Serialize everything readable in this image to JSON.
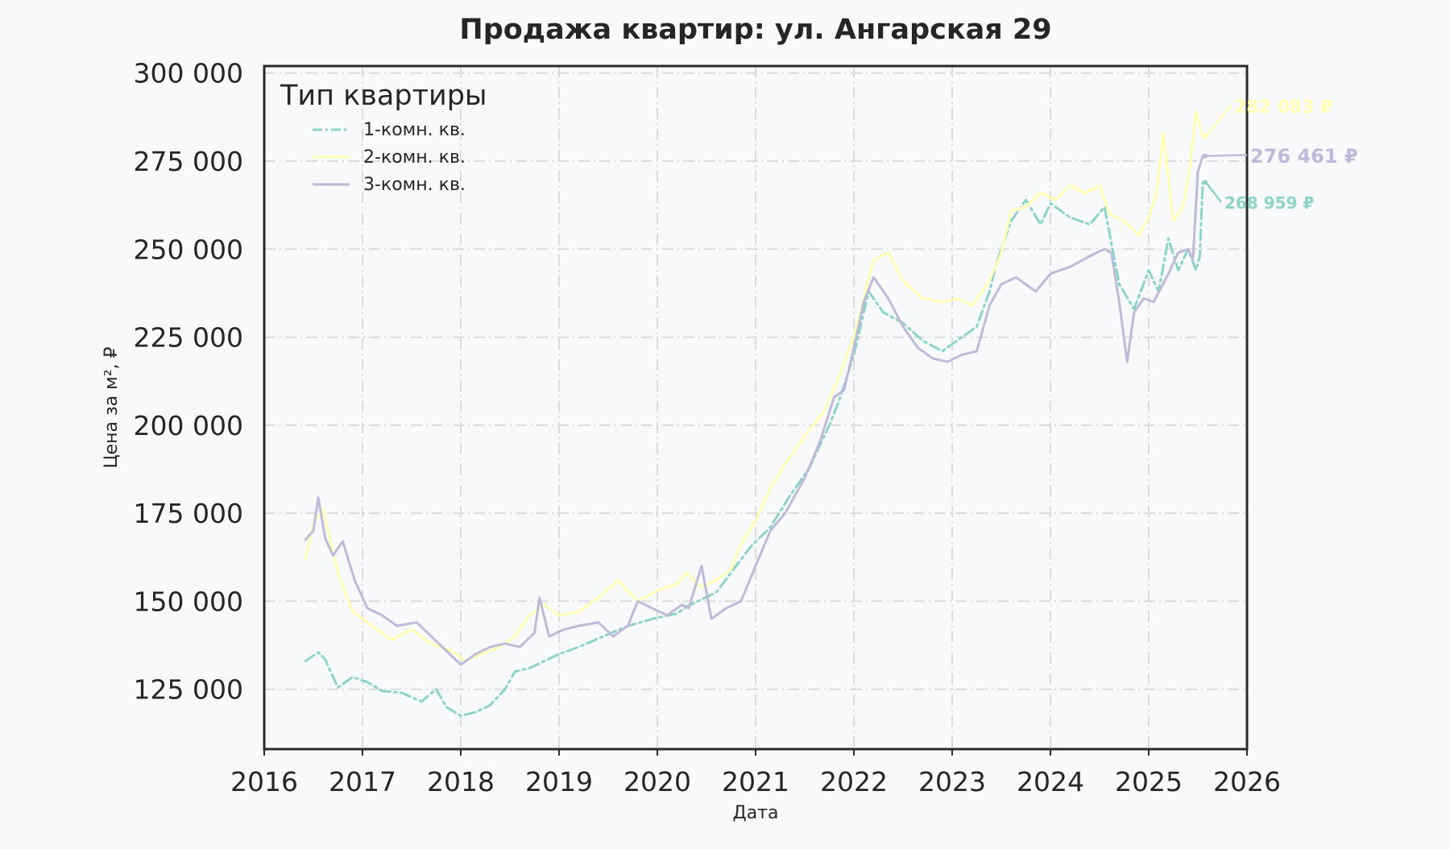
{
  "chart_data": {
    "type": "line",
    "title": "Продажа квартир: ул. Ангарская 29",
    "xlabel": "Дата",
    "ylabel": "Цена за м², ₽",
    "xlim": [
      2016,
      2026
    ],
    "ylim": [
      108000,
      302000
    ],
    "x_ticks": [
      "2016",
      "2017",
      "2018",
      "2019",
      "2020",
      "2021",
      "2022",
      "2023",
      "2024",
      "2025",
      "2026"
    ],
    "y_ticks": [
      "125 000",
      "150 000",
      "175 000",
      "200 000",
      "225 000",
      "250 000",
      "275 000",
      "300 000"
    ],
    "grid": true,
    "legend": {
      "title": "Тип квартиры",
      "placement": "top-left"
    },
    "series": [
      {
        "name": "1-комн. кв.",
        "color": "#8dd3c7",
        "dash": "dashdot",
        "end_label": "268 959 ₽",
        "x": [
          2016.42,
          2016.55,
          2016.62,
          2016.75,
          2016.9,
          2017.05,
          2017.2,
          2017.4,
          2017.6,
          2017.75,
          2017.85,
          2018.0,
          2018.15,
          2018.3,
          2018.45,
          2018.55,
          2018.7,
          2018.85,
          2019.0,
          2019.2,
          2019.45,
          2019.7,
          2019.95,
          2020.2,
          2020.3,
          2020.45,
          2020.6,
          2020.8,
          2020.95,
          2021.15,
          2021.35,
          2021.55,
          2021.75,
          2021.85,
          2022.0,
          2022.15,
          2022.3,
          2022.5,
          2022.7,
          2022.9,
          2023.05,
          2023.25,
          2023.38,
          2023.45,
          2023.6,
          2023.75,
          2023.9,
          2024.0,
          2024.2,
          2024.4,
          2024.55,
          2024.7,
          2024.85,
          2025.0,
          2025.1,
          2025.2,
          2025.3,
          2025.4,
          2025.48,
          2025.52,
          2025.55
        ],
        "y": [
          133000,
          135500,
          133500,
          125500,
          128500,
          127000,
          124500,
          124000,
          121500,
          125000,
          120000,
          117500,
          118500,
          120500,
          125000,
          130000,
          131000,
          133000,
          135000,
          137000,
          140000,
          143000,
          145000,
          146500,
          148500,
          150500,
          152500,
          160000,
          165500,
          171000,
          180000,
          188000,
          200000,
          207000,
          220000,
          238000,
          232000,
          229000,
          224000,
          221000,
          224000,
          228000,
          238000,
          246000,
          258000,
          264000,
          257000,
          263000,
          259000,
          257000,
          262000,
          240000,
          233000,
          244000,
          238000,
          253000,
          244000,
          250000,
          244000,
          248000,
          268959
        ]
      },
      {
        "name": "2-комн. кв.",
        "color": "#ffffb3",
        "dash": "solid",
        "end_label": "282 083 ₽",
        "x": [
          2016.42,
          2016.5,
          2016.6,
          2016.75,
          2016.9,
          2017.05,
          2017.3,
          2017.5,
          2017.7,
          2017.9,
          2018.05,
          2018.2,
          2018.4,
          2018.55,
          2018.7,
          2018.85,
          2019.0,
          2019.2,
          2019.4,
          2019.6,
          2019.8,
          2020.0,
          2020.2,
          2020.3,
          2020.45,
          2020.6,
          2020.75,
          2020.85,
          2021.0,
          2021.15,
          2021.3,
          2021.5,
          2021.7,
          2021.85,
          2022.0,
          2022.2,
          2022.35,
          2022.5,
          2022.7,
          2022.9,
          2023.05,
          2023.2,
          2023.38,
          2023.5,
          2023.6,
          2023.75,
          2023.9,
          2024.05,
          2024.2,
          2024.35,
          2024.5,
          2024.6,
          2024.75,
          2024.9,
          2025.0,
          2025.08,
          2025.15,
          2025.25,
          2025.35,
          2025.42,
          2025.48,
          2025.55
        ],
        "y": [
          162000,
          172000,
          176000,
          158000,
          147000,
          144000,
          139000,
          142000,
          138000,
          136000,
          133000,
          135000,
          137000,
          140000,
          146000,
          149000,
          146000,
          147000,
          151000,
          156000,
          150000,
          153000,
          155000,
          158000,
          154000,
          156000,
          159000,
          166000,
          173000,
          182000,
          189000,
          197000,
          204000,
          214000,
          225000,
          247000,
          249000,
          241000,
          236000,
          235000,
          236000,
          234000,
          241000,
          249000,
          261000,
          262000,
          266000,
          264000,
          268000,
          266000,
          268000,
          260000,
          258000,
          254000,
          259000,
          266000,
          283000,
          258000,
          262000,
          273000,
          289000,
          282083
        ]
      },
      {
        "name": "3-комн. кв.",
        "color": "#bebada",
        "dash": "solid",
        "end_label": "276 461 ₽",
        "x": [
          2016.42,
          2016.5,
          2016.55,
          2016.62,
          2016.7,
          2016.8,
          2016.92,
          2017.05,
          2017.2,
          2017.35,
          2017.55,
          2017.7,
          2017.85,
          2018.0,
          2018.15,
          2018.3,
          2018.45,
          2018.6,
          2018.75,
          2018.8,
          2018.9,
          2019.05,
          2019.2,
          2019.4,
          2019.55,
          2019.7,
          2019.8,
          2019.95,
          2020.1,
          2020.25,
          2020.32,
          2020.45,
          2020.55,
          2020.7,
          2020.85,
          2021.0,
          2021.15,
          2021.3,
          2021.5,
          2021.65,
          2021.8,
          2021.9,
          2022.0,
          2022.1,
          2022.2,
          2022.35,
          2022.5,
          2022.65,
          2022.8,
          2022.95,
          2023.1,
          2023.25,
          2023.38,
          2023.5,
          2023.65,
          2023.85,
          2024.0,
          2024.2,
          2024.4,
          2024.55,
          2024.62,
          2024.7,
          2024.78,
          2024.85,
          2024.95,
          2025.05,
          2025.2,
          2025.3,
          2025.4,
          2025.45,
          2025.5,
          2025.55
        ],
        "y": [
          167500,
          170000,
          179500,
          168000,
          163000,
          167000,
          156000,
          148000,
          146000,
          143000,
          144000,
          140000,
          136000,
          132000,
          135000,
          137000,
          138000,
          137000,
          141000,
          151000,
          140000,
          142000,
          143000,
          144000,
          140000,
          143000,
          150000,
          148000,
          146000,
          149000,
          148000,
          160000,
          145000,
          148000,
          150000,
          160000,
          170000,
          175000,
          185000,
          195000,
          208000,
          210000,
          222000,
          235000,
          242000,
          236000,
          228000,
          222000,
          219000,
          218000,
          220000,
          221000,
          234000,
          240000,
          242000,
          238000,
          243000,
          245000,
          248000,
          250000,
          249000,
          235000,
          218000,
          232000,
          236000,
          235000,
          243000,
          249000,
          250000,
          247000,
          272000,
          276461
        ]
      }
    ]
  }
}
